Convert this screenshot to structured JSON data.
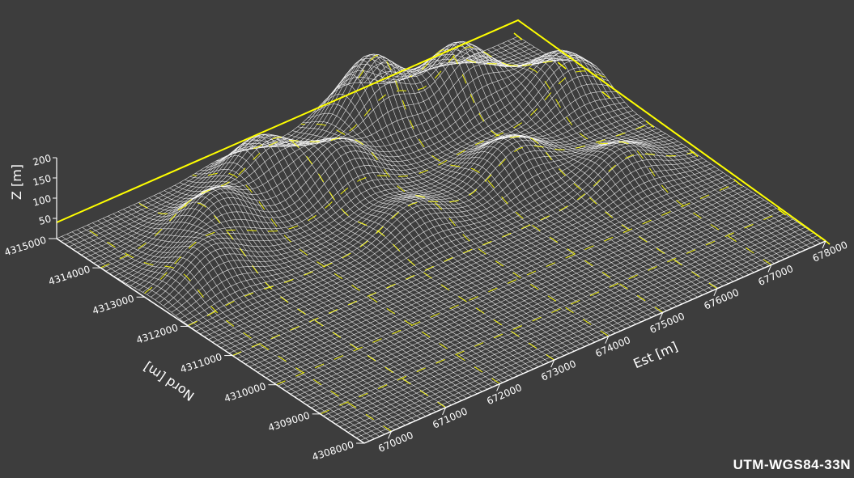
{
  "crs_label": "UTM-WGS84-33N",
  "colors": {
    "background": "#3d3d3d",
    "surface_mesh": "#ffffff",
    "grid_and_frame": "#ffff00",
    "axes": "#ffffff"
  },
  "chart_data": {
    "type": "surface",
    "title": "",
    "xlabel": "Est [m]",
    "ylabel": "Nord [m]",
    "zlabel": "Z [m]",
    "xlim": [
      669500,
      678000
    ],
    "ylim": [
      4308000,
      4315000
    ],
    "zlim": [
      0,
      200
    ],
    "x_ticks": [
      "670000",
      "671000",
      "672000",
      "673000",
      "674000",
      "675000",
      "676000",
      "677000",
      "678000"
    ],
    "y_ticks": [
      "4308000",
      "4309000",
      "4310000",
      "4311000",
      "4312000",
      "4313000",
      "4314000",
      "4315000"
    ],
    "z_ticks": [
      "50",
      "100",
      "150",
      "200"
    ],
    "grid": true,
    "relief_peaks": [
      {
        "x": 670500,
        "y": 4312800,
        "z": 80
      },
      {
        "x": 671300,
        "y": 4313600,
        "z": 110
      },
      {
        "x": 672600,
        "y": 4314200,
        "z": 120
      },
      {
        "x": 673500,
        "y": 4313500,
        "z": 105
      },
      {
        "x": 674800,
        "y": 4314400,
        "z": 180
      },
      {
        "x": 676200,
        "y": 4314100,
        "z": 150
      },
      {
        "x": 677400,
        "y": 4313300,
        "z": 115
      },
      {
        "x": 675600,
        "y": 4312200,
        "z": 90
      },
      {
        "x": 676800,
        "y": 4311200,
        "z": 70
      },
      {
        "x": 673600,
        "y": 4312000,
        "z": 60
      }
    ]
  }
}
